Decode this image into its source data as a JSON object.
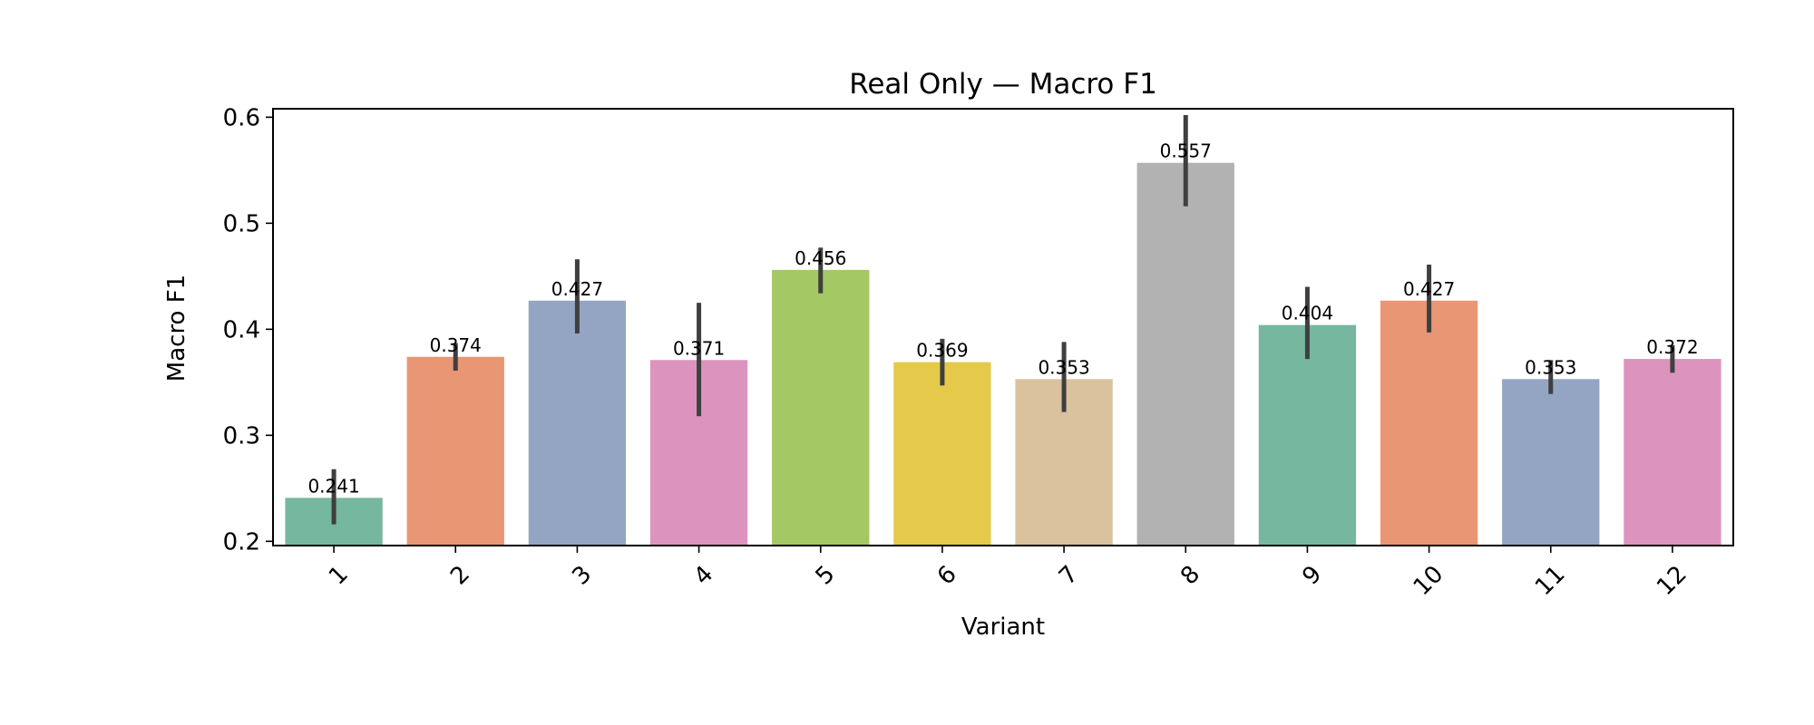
{
  "chart_data": {
    "type": "bar",
    "title": "Real Only — Macro F1",
    "xlabel": "Variant",
    "ylabel": "Macro F1",
    "categories": [
      "1",
      "2",
      "3",
      "4",
      "5",
      "6",
      "7",
      "8",
      "9",
      "10",
      "11",
      "12"
    ],
    "values": [
      0.241,
      0.374,
      0.427,
      0.371,
      0.456,
      0.369,
      0.353,
      0.557,
      0.404,
      0.427,
      0.353,
      0.372
    ],
    "value_labels": [
      "0.241",
      "0.374",
      "0.427",
      "0.371",
      "0.456",
      "0.369",
      "0.353",
      "0.557",
      "0.404",
      "0.427",
      "0.353",
      "0.372"
    ],
    "error_low": [
      0.216,
      0.361,
      0.396,
      0.318,
      0.434,
      0.347,
      0.322,
      0.516,
      0.372,
      0.397,
      0.339,
      0.359
    ],
    "error_high": [
      0.268,
      0.387,
      0.466,
      0.425,
      0.477,
      0.391,
      0.388,
      0.602,
      0.44,
      0.461,
      0.371,
      0.385
    ],
    "ylim": [
      0.196,
      0.608
    ],
    "yticks": [
      0.2,
      0.3,
      0.4,
      0.5,
      0.6
    ],
    "ytick_labels": [
      "0.2",
      "0.3",
      "0.4",
      "0.5",
      "0.6"
    ],
    "colors": [
      "#76b7a0",
      "#e99674",
      "#94a5c3",
      "#dc94bf",
      "#a3c864",
      "#e4c94b",
      "#dac29d",
      "#b2b2b2",
      "#76b7a0",
      "#e99674",
      "#94a5c3",
      "#dc94bf"
    ],
    "error_color": "#3f3f3f",
    "grid": false,
    "legend": "none"
  }
}
